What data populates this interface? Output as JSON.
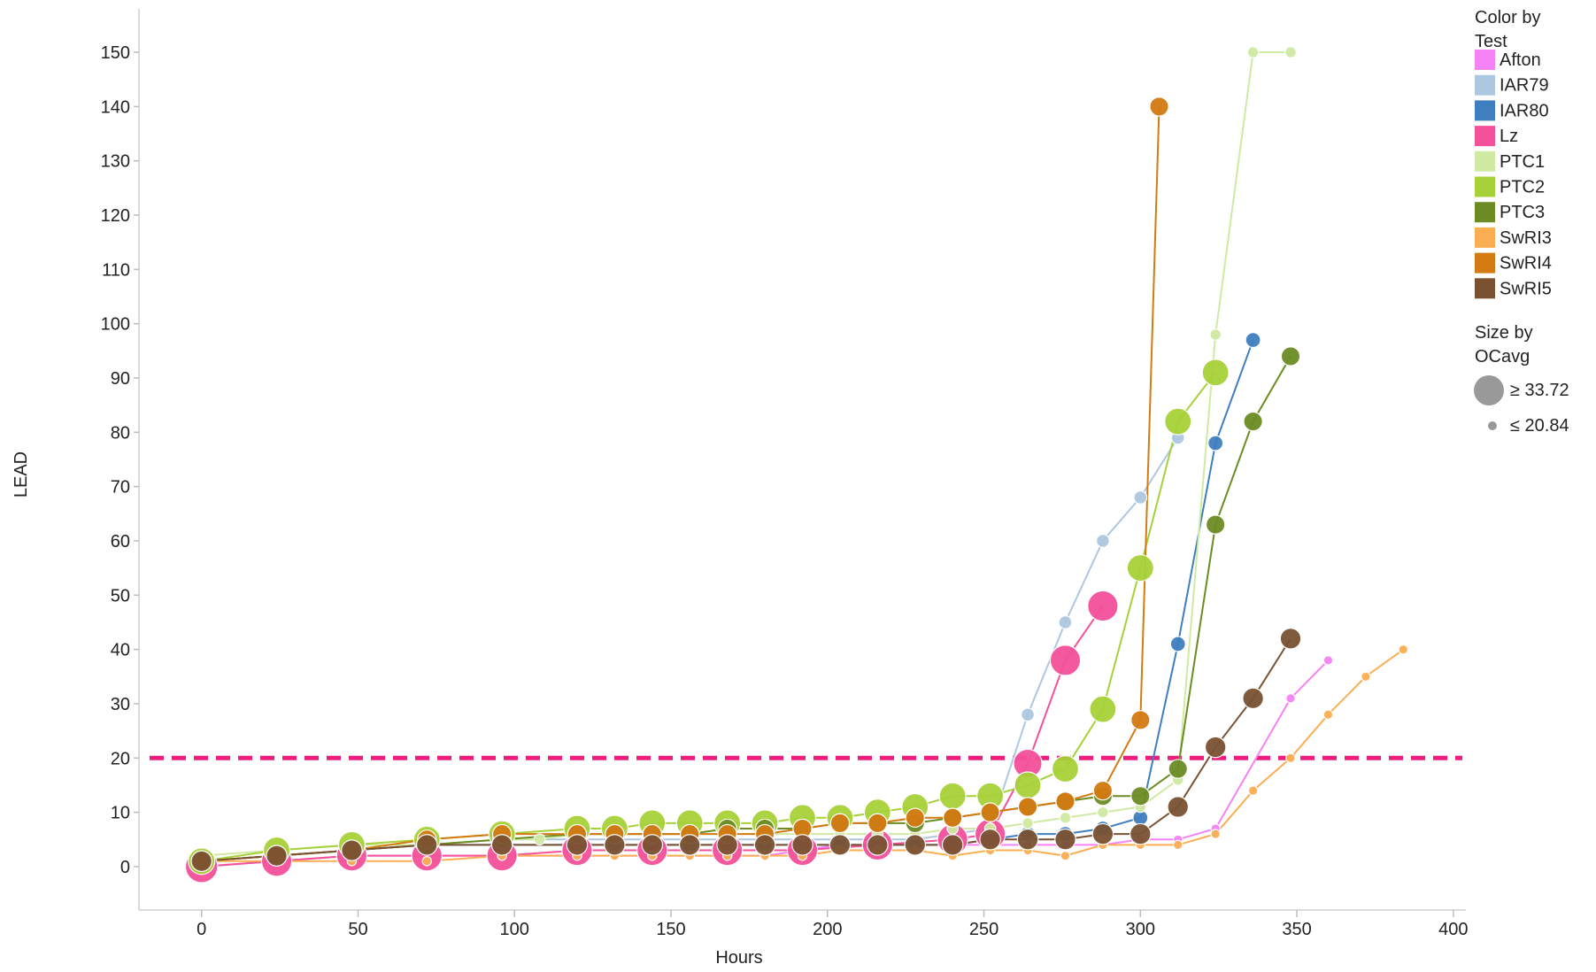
{
  "chart_data": {
    "type": "scatter",
    "xlabel": "Hours",
    "ylabel": "LEAD",
    "xlim": [
      -20,
      404
    ],
    "ylim": [
      -8,
      158
    ],
    "x_ticks": [
      0,
      50,
      100,
      150,
      200,
      250,
      300,
      350,
      400
    ],
    "y_ticks": [
      0,
      10,
      20,
      30,
      40,
      50,
      60,
      70,
      80,
      90,
      100,
      110,
      120,
      130,
      140,
      150
    ],
    "grid": false,
    "legend_position": "right",
    "reference_line": {
      "y": 20,
      "color": "#ee1c7c",
      "style": "dashed"
    },
    "size_legend": {
      "title": [
        "Size by",
        "OCavg"
      ],
      "max_label": "≥ 33.72",
      "min_label": "≤ 20.84",
      "max_value": 33.72,
      "min_value": 20.84
    },
    "color_legend_title": [
      "Color by",
      "Test"
    ],
    "series": [
      {
        "name": "Afton",
        "color": "#f683f5",
        "points": [
          [
            0,
            0,
            21
          ],
          [
            24,
            1,
            21
          ],
          [
            48,
            2,
            21
          ],
          [
            72,
            2,
            21
          ],
          [
            96,
            2,
            21
          ],
          [
            120,
            2,
            21
          ],
          [
            132,
            2,
            21
          ],
          [
            144,
            2,
            21
          ],
          [
            156,
            2,
            21
          ],
          [
            168,
            2,
            21
          ],
          [
            180,
            2,
            21
          ],
          [
            192,
            3,
            21
          ],
          [
            204,
            4,
            21
          ],
          [
            216,
            4,
            21
          ],
          [
            228,
            4,
            21
          ],
          [
            240,
            4,
            21
          ],
          [
            252,
            4,
            21
          ],
          [
            264,
            4,
            21
          ],
          [
            276,
            4,
            21
          ],
          [
            288,
            4,
            21
          ],
          [
            300,
            5,
            21
          ],
          [
            312,
            5,
            21
          ],
          [
            324,
            7,
            21
          ],
          [
            348,
            31,
            21
          ],
          [
            360,
            38,
            21
          ]
        ]
      },
      {
        "name": "IAR79",
        "color": "#aec7e1",
        "points": [
          [
            0,
            1,
            23
          ],
          [
            24,
            2,
            23
          ],
          [
            48,
            3,
            23
          ],
          [
            72,
            4,
            23
          ],
          [
            96,
            5,
            23
          ],
          [
            120,
            5,
            23
          ],
          [
            132,
            5,
            23
          ],
          [
            144,
            5,
            23
          ],
          [
            156,
            5,
            23
          ],
          [
            168,
            5,
            23
          ],
          [
            180,
            5,
            23
          ],
          [
            192,
            5,
            23
          ],
          [
            204,
            5,
            23
          ],
          [
            216,
            5,
            23
          ],
          [
            228,
            5,
            23
          ],
          [
            240,
            6,
            23
          ],
          [
            252,
            7,
            23
          ],
          [
            264,
            28,
            23
          ],
          [
            276,
            45,
            23
          ],
          [
            288,
            60,
            23
          ],
          [
            300,
            68,
            23
          ],
          [
            312,
            79,
            23
          ]
        ]
      },
      {
        "name": "IAR80",
        "color": "#3f7fbf",
        "points": [
          [
            0,
            1,
            24
          ],
          [
            24,
            2,
            24
          ],
          [
            48,
            3,
            24
          ],
          [
            72,
            4,
            24
          ],
          [
            96,
            4,
            24
          ],
          [
            120,
            4,
            24
          ],
          [
            132,
            4,
            24
          ],
          [
            144,
            4,
            24
          ],
          [
            156,
            4,
            24
          ],
          [
            168,
            4,
            24
          ],
          [
            180,
            4,
            24
          ],
          [
            192,
            4,
            24
          ],
          [
            204,
            4,
            24
          ],
          [
            216,
            4,
            24
          ],
          [
            228,
            4,
            24
          ],
          [
            240,
            4,
            24
          ],
          [
            252,
            5,
            24
          ],
          [
            264,
            6,
            24
          ],
          [
            276,
            6,
            24
          ],
          [
            288,
            7,
            24
          ],
          [
            300,
            9,
            24
          ],
          [
            312,
            41,
            24
          ],
          [
            324,
            78,
            24
          ],
          [
            336,
            97,
            24
          ]
        ]
      },
      {
        "name": "Lz",
        "color": "#f4519b",
        "points": [
          [
            0,
            0,
            33
          ],
          [
            24,
            1,
            32
          ],
          [
            48,
            2,
            32
          ],
          [
            72,
            2,
            32
          ],
          [
            96,
            2,
            32
          ],
          [
            120,
            3,
            32
          ],
          [
            144,
            3,
            32
          ],
          [
            168,
            3,
            32
          ],
          [
            192,
            3,
            32
          ],
          [
            216,
            4,
            32
          ],
          [
            240,
            5,
            32
          ],
          [
            252,
            6,
            32
          ],
          [
            264,
            19,
            31
          ],
          [
            276,
            38,
            32
          ],
          [
            288,
            48,
            32
          ]
        ]
      },
      {
        "name": "PTC1",
        "color": "#d0e9a3",
        "points": [
          [
            0,
            2,
            22
          ],
          [
            24,
            3,
            22
          ],
          [
            48,
            4,
            22
          ],
          [
            72,
            4,
            22
          ],
          [
            96,
            5,
            22
          ],
          [
            108,
            5,
            22
          ],
          [
            120,
            6,
            22
          ],
          [
            132,
            6,
            22
          ],
          [
            144,
            6,
            22
          ],
          [
            156,
            6,
            22
          ],
          [
            168,
            6,
            22
          ],
          [
            180,
            6,
            22
          ],
          [
            192,
            6,
            22
          ],
          [
            204,
            6,
            22
          ],
          [
            216,
            6,
            22
          ],
          [
            228,
            6,
            22
          ],
          [
            240,
            7,
            22
          ],
          [
            252,
            7,
            22
          ],
          [
            264,
            8,
            22
          ],
          [
            276,
            9,
            22
          ],
          [
            288,
            10,
            22
          ],
          [
            300,
            11,
            22
          ],
          [
            312,
            16,
            22
          ],
          [
            324,
            98,
            22
          ],
          [
            336,
            150,
            22
          ],
          [
            348,
            150,
            22
          ]
        ]
      },
      {
        "name": "PTC2",
        "color": "#a7d138",
        "points": [
          [
            0,
            1,
            30
          ],
          [
            24,
            3,
            30
          ],
          [
            48,
            4,
            30
          ],
          [
            72,
            5,
            30
          ],
          [
            96,
            6,
            30
          ],
          [
            120,
            7,
            30
          ],
          [
            132,
            7,
            30
          ],
          [
            144,
            8,
            30
          ],
          [
            156,
            8,
            30
          ],
          [
            168,
            8,
            30
          ],
          [
            180,
            8,
            30
          ],
          [
            192,
            9,
            30
          ],
          [
            204,
            9,
            30
          ],
          [
            216,
            10,
            30
          ],
          [
            228,
            11,
            30
          ],
          [
            240,
            13,
            30
          ],
          [
            252,
            13,
            30
          ],
          [
            264,
            15,
            30
          ],
          [
            276,
            18,
            30
          ],
          [
            288,
            29,
            30
          ],
          [
            300,
            55,
            30
          ],
          [
            312,
            82,
            30
          ],
          [
            324,
            91,
            30
          ]
        ]
      },
      {
        "name": "PTC3",
        "color": "#6c8c23",
        "points": [
          [
            0,
            1,
            26
          ],
          [
            24,
            2,
            26
          ],
          [
            48,
            3,
            26
          ],
          [
            72,
            4,
            26
          ],
          [
            96,
            5,
            26
          ],
          [
            120,
            6,
            26
          ],
          [
            132,
            6,
            26
          ],
          [
            144,
            6,
            26
          ],
          [
            156,
            6,
            26
          ],
          [
            168,
            7,
            26
          ],
          [
            180,
            7,
            26
          ],
          [
            192,
            7,
            26
          ],
          [
            204,
            8,
            26
          ],
          [
            216,
            8,
            26
          ],
          [
            228,
            8,
            26
          ],
          [
            240,
            9,
            26
          ],
          [
            252,
            10,
            26
          ],
          [
            264,
            11,
            26
          ],
          [
            276,
            12,
            26
          ],
          [
            288,
            13,
            26
          ],
          [
            300,
            13,
            26
          ],
          [
            312,
            18,
            26
          ],
          [
            324,
            63,
            26
          ],
          [
            336,
            82,
            26
          ],
          [
            348,
            94,
            26
          ]
        ]
      },
      {
        "name": "SwRI3",
        "color": "#fbae52",
        "points": [
          [
            0,
            1,
            21
          ],
          [
            24,
            1,
            21
          ],
          [
            48,
            1,
            21
          ],
          [
            72,
            1,
            21
          ],
          [
            96,
            2,
            21
          ],
          [
            120,
            2,
            21
          ],
          [
            132,
            2,
            21
          ],
          [
            144,
            2,
            21
          ],
          [
            156,
            2,
            21
          ],
          [
            168,
            2,
            21
          ],
          [
            180,
            2,
            21
          ],
          [
            192,
            2,
            21
          ],
          [
            204,
            3,
            21
          ],
          [
            216,
            3,
            21
          ],
          [
            228,
            3,
            21
          ],
          [
            240,
            2,
            21
          ],
          [
            252,
            3,
            21
          ],
          [
            264,
            3,
            21
          ],
          [
            276,
            2,
            21
          ],
          [
            288,
            4,
            21
          ],
          [
            300,
            4,
            21
          ],
          [
            312,
            4,
            21
          ],
          [
            324,
            6,
            21
          ],
          [
            336,
            14,
            21
          ],
          [
            348,
            20,
            21
          ],
          [
            360,
            28,
            21
          ],
          [
            372,
            35,
            21
          ],
          [
            384,
            40,
            21
          ]
        ]
      },
      {
        "name": "SwRI4",
        "color": "#d37a12",
        "points": [
          [
            0,
            1,
            26
          ],
          [
            24,
            2,
            26
          ],
          [
            48,
            3,
            26
          ],
          [
            72,
            5,
            26
          ],
          [
            96,
            6,
            26
          ],
          [
            120,
            6,
            26
          ],
          [
            132,
            6,
            26
          ],
          [
            144,
            6,
            26
          ],
          [
            156,
            6,
            26
          ],
          [
            168,
            6,
            26
          ],
          [
            180,
            6,
            26
          ],
          [
            192,
            7,
            26
          ],
          [
            204,
            8,
            26
          ],
          [
            216,
            8,
            26
          ],
          [
            228,
            9,
            26
          ],
          [
            240,
            9,
            26
          ],
          [
            252,
            10,
            26
          ],
          [
            264,
            11,
            26
          ],
          [
            276,
            12,
            26
          ],
          [
            288,
            14,
            26
          ],
          [
            300,
            27,
            26
          ],
          [
            306,
            140,
            26
          ]
        ]
      },
      {
        "name": "SwRI5",
        "color": "#7a5232",
        "points": [
          [
            0,
            1,
            27
          ],
          [
            24,
            2,
            27
          ],
          [
            48,
            3,
            27
          ],
          [
            72,
            4,
            27
          ],
          [
            96,
            4,
            27
          ],
          [
            120,
            4,
            27
          ],
          [
            132,
            4,
            27
          ],
          [
            144,
            4,
            27
          ],
          [
            156,
            4,
            27
          ],
          [
            168,
            4,
            27
          ],
          [
            180,
            4,
            27
          ],
          [
            192,
            4,
            27
          ],
          [
            204,
            4,
            27
          ],
          [
            216,
            4,
            27
          ],
          [
            228,
            4,
            27
          ],
          [
            240,
            4,
            27
          ],
          [
            252,
            5,
            27
          ],
          [
            264,
            5,
            27
          ],
          [
            276,
            5,
            27
          ],
          [
            288,
            6,
            27
          ],
          [
            300,
            6,
            27
          ],
          [
            312,
            11,
            27
          ],
          [
            324,
            22,
            27
          ],
          [
            336,
            31,
            27
          ],
          [
            348,
            42,
            27
          ]
        ]
      }
    ]
  }
}
